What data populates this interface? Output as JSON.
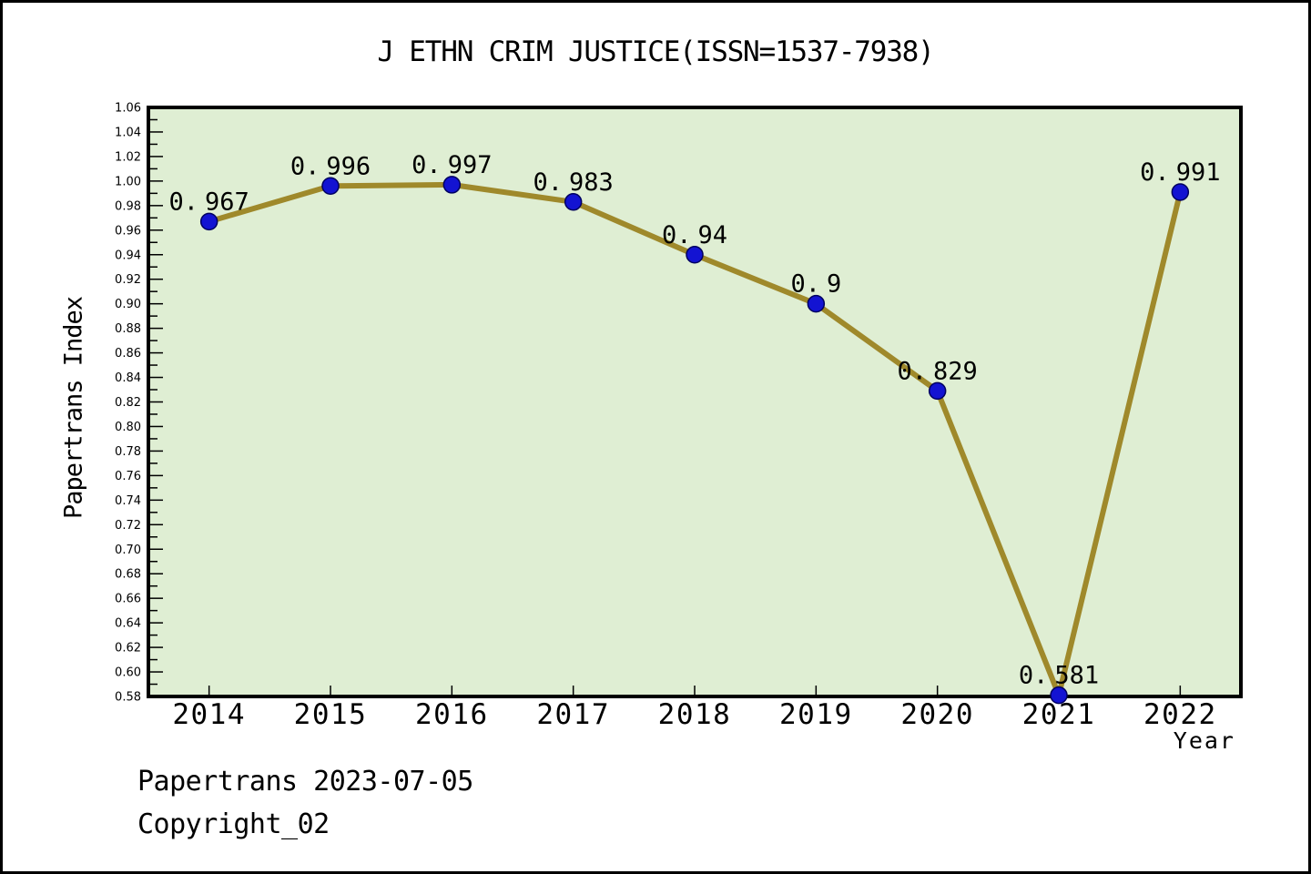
{
  "title": "J ETHN CRIM JUSTICE(ISSN=1537-7938)",
  "footer": {
    "line1": "Papertrans 2023-07-05",
    "line2": "Copyright_02"
  },
  "chart_data": {
    "type": "line",
    "title": "J ETHN CRIM JUSTICE(ISSN=1537-7938)",
    "xlabel": "Year",
    "ylabel": "Papertrans Index",
    "x": [
      2014,
      2015,
      2016,
      2017,
      2018,
      2019,
      2020,
      2021,
      2022
    ],
    "x_tick_labels": [
      "2014",
      "2015",
      "2016",
      "2017",
      "2018",
      "2019",
      "2020",
      "2021",
      "2022"
    ],
    "series": [
      {
        "name": "Papertrans Index",
        "values": [
          0.967,
          0.996,
          0.997,
          0.983,
          0.94,
          0.9,
          0.829,
          0.581,
          0.991
        ]
      }
    ],
    "point_labels": [
      "0.967",
      "0.996",
      "0.997",
      "0.983",
      "0.94",
      "0.9",
      "0.829",
      "0.581",
      "0.991"
    ],
    "xlim": [
      2013.5,
      2022.5
    ],
    "ylim": [
      0.58,
      1.06
    ],
    "y_major_tick_step": 0.02,
    "y_minor_tick_step": 0.01,
    "y_tick_labels": [
      "1.06",
      "1.04",
      "1.02",
      "1.00",
      "0.98",
      "0.96",
      "0.94",
      "0.92",
      "0.90",
      "0.88",
      "0.86",
      "0.84",
      "0.82",
      "0.80",
      "0.78",
      "0.76",
      "0.74",
      "0.72",
      "0.70",
      "0.68",
      "0.66",
      "0.64",
      "0.62",
      "0.60",
      "0.58"
    ],
    "grid": false,
    "legend_position": "none",
    "colors": {
      "line": "#9f892b",
      "marker_fill": "#1313d2",
      "marker_edge": "#000060",
      "plot_bg": "#dfeed3",
      "frame": "#000000",
      "page_bg": "#ffffff",
      "text": "#000000"
    }
  }
}
